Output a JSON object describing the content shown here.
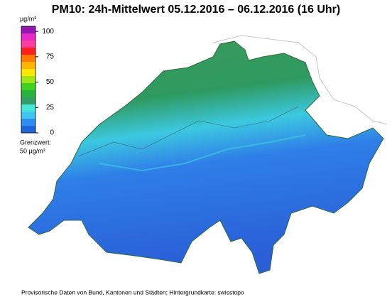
{
  "title": "PM10: 24h-Mittelwert 05.12.2016 – 06.12.2016 (16 Uhr)",
  "colorbar": {
    "unit": "µg/m³",
    "lim": [
      0,
      105
    ],
    "ticks": [
      0,
      25,
      50,
      75,
      100
    ],
    "bins": [
      0,
      7,
      14,
      21,
      28,
      35,
      42,
      49,
      56,
      63,
      70,
      77,
      84,
      91,
      98,
      105
    ],
    "colors": [
      "#1e64dc",
      "#2f8cf0",
      "#3cc8f0",
      "#46e6dc",
      "#32a064",
      "#28b43c",
      "#3cd21e",
      "#a0e614",
      "#ffe600",
      "#ffb400",
      "#ff7800",
      "#ff1e1e",
      "#ff3ca0",
      "#e628c8",
      "#9614b4"
    ]
  },
  "limit_note": [
    "Grenzwert:",
    "50 µg/m³"
  ],
  "footer": "Provisorische Daten von Bund, Kantonen und Städten; Hintergrundkarte: swisstopo"
}
